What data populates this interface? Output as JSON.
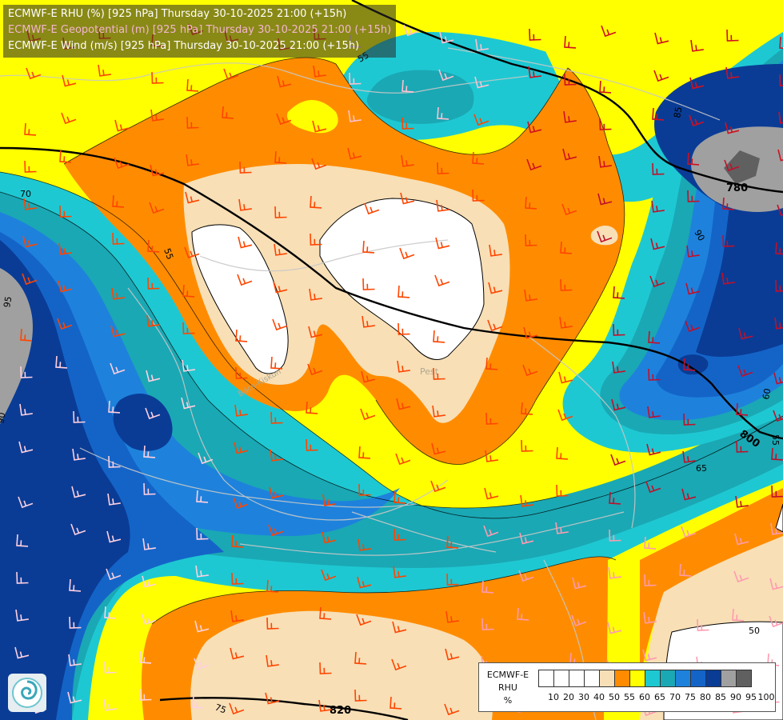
{
  "header": {
    "line1": "ECMWF-E RHU (%) [925 hPa] Thursday 30-10-2025 21:00 (+15h)",
    "line2": "ECMWF-E Geopotential (m) [925 hPa] Thursday 30-10-2025 21:00 (+15h)",
    "line3": "ECMWF-E Wind (m/s) [925 hPa] Thursday 30-10-2025 21:00 (+15h)",
    "colors": {
      "line1": "#ffffff",
      "line2": "#f4b6cf",
      "line3": "#ffffff"
    }
  },
  "legend": {
    "title1": "ECMWF-E",
    "title2": "RHU",
    "unit": "%",
    "ticks": [
      "10",
      "20",
      "30",
      "40",
      "50",
      "55",
      "60",
      "65",
      "70",
      "75",
      "80",
      "85",
      "90",
      "95",
      "100"
    ],
    "colors": [
      "#ffffff",
      "#ffffff",
      "#ffffff",
      "#ffffff",
      "#f8dfb6",
      "#ff8c00",
      "#ffff00",
      "#1ec8d2",
      "#1aa8b4",
      "#1e82dc",
      "#1464c8",
      "#0a3c96",
      "#a0a0a0",
      "#606060"
    ]
  },
  "map": {
    "geopotential_labels": [
      "780",
      "800",
      "820"
    ],
    "rhu_contour_labels": [
      "55",
      "55",
      "55",
      "60",
      "65",
      "70",
      "75",
      "85",
      "90",
      "90",
      "95",
      "50"
    ],
    "place_labels": [
      "Pest",
      "Bács-Kiskun"
    ],
    "palette": {
      "white": "#ffffff",
      "tan": "#f8dfb6",
      "orange": "#ff8c00",
      "yellow": "#ffff00",
      "cyan": "#1ec8d2",
      "teal": "#1aa8b4",
      "blue": "#1e82dc",
      "blue2": "#1464c8",
      "navy": "#0a3c96",
      "gray": "#a0a0a0",
      "darkgray": "#606060"
    }
  }
}
